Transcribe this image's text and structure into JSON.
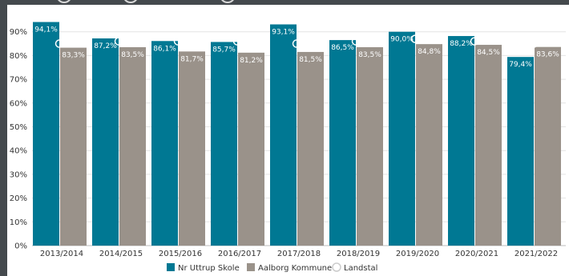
{
  "chart_data": {
    "type": "bar",
    "categories": [
      "2013/2014",
      "2014/2015",
      "2015/2016",
      "2016/2017",
      "2017/2018",
      "2018/2019",
      "2019/2020",
      "2020/2021",
      "2021/2022"
    ],
    "series": [
      {
        "name": "Nr Uttrup Skole",
        "color": "#007893",
        "values": [
          94.1,
          87.2,
          86.1,
          85.7,
          93.1,
          86.5,
          90.0,
          88.2,
          79.4
        ],
        "labels": [
          "94,1%",
          "87,2%",
          "86,1%",
          "85,7%",
          "93,1%",
          "86,5%",
          "90,0%",
          "88,2%",
          "79,4%"
        ]
      },
      {
        "name": "Aalborg Kommune",
        "color": "#9a928a",
        "values": [
          83.3,
          83.5,
          81.7,
          81.2,
          81.5,
          83.5,
          84.8,
          84.5,
          83.6
        ],
        "labels": [
          "83,3%",
          "83,5%",
          "81,7%",
          "81,2%",
          "81,5%",
          "83,5%",
          "84,8%",
          "84,5%",
          "83,6%"
        ]
      },
      {
        "name": "Landstal",
        "marker": "circle",
        "values": [
          85,
          86,
          86,
          86,
          85,
          86,
          87,
          86,
          85
        ]
      }
    ],
    "ylim": [
      0,
      100
    ],
    "yticks": [
      "0%",
      "10%",
      "20%",
      "30%",
      "40%",
      "50%",
      "60%",
      "70%",
      "80%",
      "90%"
    ],
    "grid": true,
    "legend_position": "bottom"
  }
}
